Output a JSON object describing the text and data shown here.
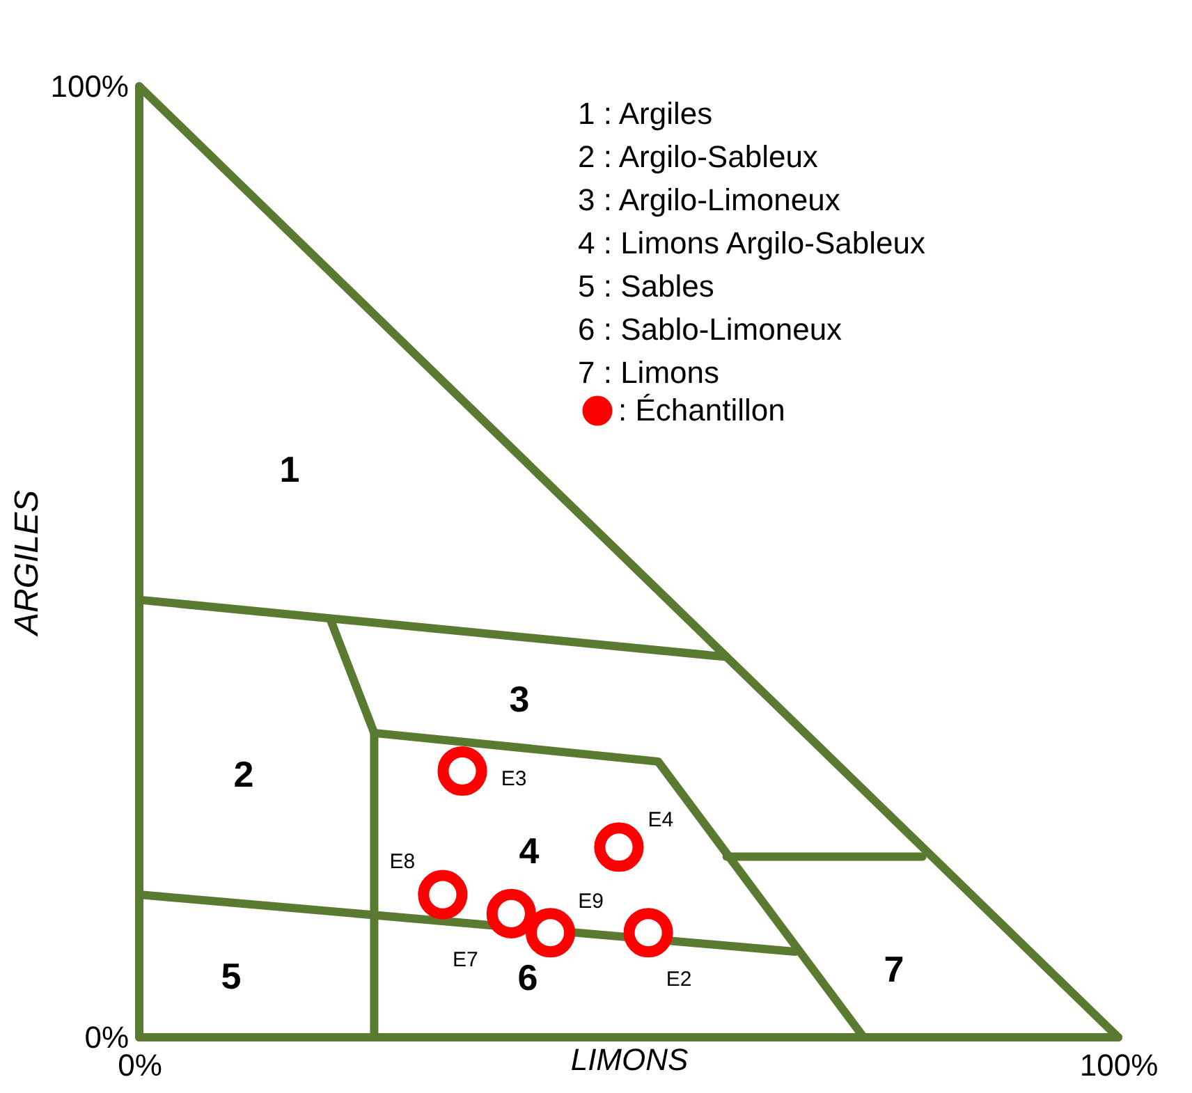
{
  "chart_data": {
    "type": "scatter",
    "xlabel": "LIMONS",
    "ylabel": "ARGILES",
    "xlim": [
      0,
      100
    ],
    "ylim": [
      0,
      100
    ],
    "xticks": [
      {
        "value": 0,
        "label": "0%"
      },
      {
        "value": 100,
        "label": "100%"
      }
    ],
    "yticks": [
      {
        "value": 0,
        "label": "0%"
      },
      {
        "value": 100,
        "label": "100%"
      }
    ],
    "grid": false,
    "legend": "top right",
    "series": [
      {
        "type": "line",
        "color": "#5a7a32",
        "marker": "none",
        "x": [
          0,
          0
        ],
        "values": [
          0,
          100
        ]
      },
      {
        "type": "line",
        "color": "#5a7a32",
        "marker": "none",
        "x": [
          0,
          100
        ],
        "values": [
          100,
          0
        ]
      },
      {
        "type": "line",
        "color": "#5a7a32",
        "marker": "none",
        "x": [
          0,
          100
        ],
        "values": [
          0,
          0
        ]
      },
      {
        "type": "line",
        "color": "#5a7a32",
        "marker": "none",
        "x": [
          0,
          60
        ],
        "values": [
          46,
          40
        ]
      },
      {
        "type": "line",
        "color": "#5a7a32",
        "marker": "none",
        "x": [
          19.5,
          24,
          24
        ],
        "values": [
          44,
          32,
          0
        ]
      },
      {
        "type": "line",
        "color": "#5a7a32",
        "marker": "none",
        "x": [
          24,
          53,
          74
        ],
        "values": [
          32,
          29,
          0
        ]
      },
      {
        "type": "line",
        "color": "#5a7a32",
        "marker": "none",
        "x": [
          0,
          67
        ],
        "values": [
          15,
          9
        ]
      },
      {
        "type": "line",
        "color": "#5a7a32",
        "marker": "none",
        "x": [
          60,
          80
        ],
        "values": [
          19,
          19
        ]
      },
      {
        "name": ": Échantillon",
        "color": "#ff0000",
        "marker": "circle",
        "x": [
          33,
          49,
          31,
          38,
          42,
          52
        ],
        "values": [
          28,
          20,
          15,
          13,
          11,
          11
        ],
        "value_labels": [
          "E3",
          "E4",
          "E8",
          "E7",
          "E9",
          "E2"
        ]
      }
    ],
    "annotations": [
      "1 : Argiles",
      "2 : Argilo-Sableux",
      "3 : Argilo-Limoneux",
      "4 : Limons Argilo-Sableux",
      "5 : Sables",
      "6 : Sablo-Limoneux",
      "7 : Limons",
      "1",
      "2",
      "3",
      "4",
      "5",
      "6",
      "7"
    ]
  }
}
